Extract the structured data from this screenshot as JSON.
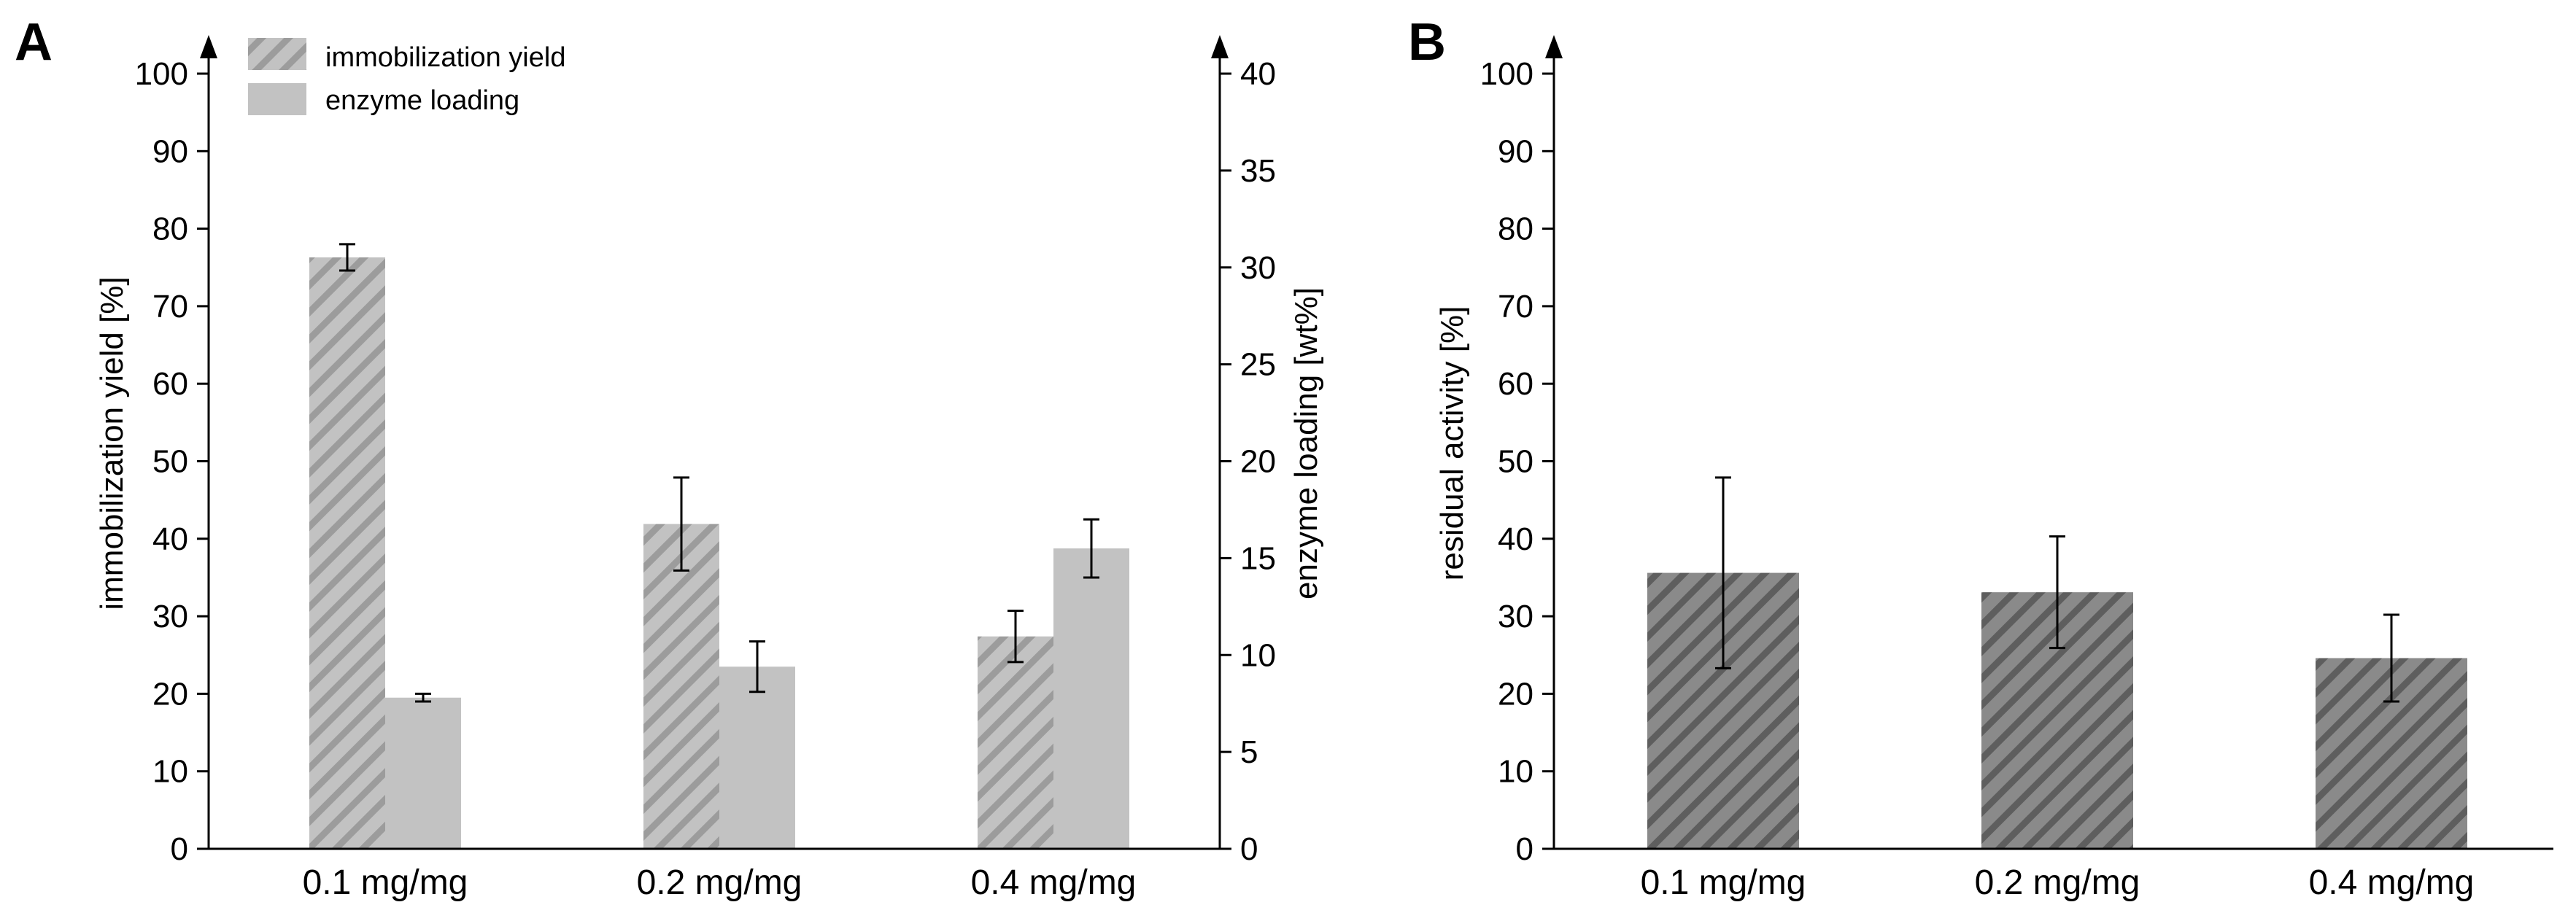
{
  "colors": {
    "hatch_light_bg": "#c2c2c2",
    "hatch_light_stripe": "#9c9c9c",
    "hatch_dark_bg": "#8a8a8a",
    "hatch_dark_stripe": "#5e5e5e",
    "solid_bar": "#c2c2c2",
    "axis": "#000000"
  },
  "chart_data": [
    {
      "panel": "A",
      "type": "bar",
      "categories": [
        "0.1 mg/mg",
        "0.2 mg/mg",
        "0.4 mg/mg"
      ],
      "ylabel": "immobilization yield [%]",
      "y2label": "enzyme loading [wt%]",
      "ylim": [
        0,
        100
      ],
      "y2lim": [
        0,
        40
      ],
      "yticks": [
        0,
        10,
        20,
        30,
        40,
        50,
        60,
        70,
        80,
        90,
        100
      ],
      "y2ticks": [
        0,
        5,
        10,
        15,
        20,
        25,
        30,
        35,
        40
      ],
      "legend_position": "top-left",
      "series": [
        {
          "name": "immobilization yield",
          "axis": "left",
          "style": "hatched-light",
          "values": [
            76.3,
            41.9,
            27.4
          ],
          "errors": [
            1.7,
            6.0,
            3.3
          ]
        },
        {
          "name": "enzyme loading",
          "axis": "right",
          "style": "solid-light",
          "values": [
            7.8,
            9.4,
            15.5
          ],
          "errors": [
            0.2,
            1.3,
            1.5
          ]
        }
      ]
    },
    {
      "panel": "B",
      "type": "bar",
      "categories": [
        "0.1 mg/mg",
        "0.2 mg/mg",
        "0.4 mg/mg"
      ],
      "ylabel": "residual activity [%]",
      "ylim": [
        0,
        100
      ],
      "yticks": [
        0,
        10,
        20,
        30,
        40,
        50,
        60,
        70,
        80,
        90,
        100
      ],
      "series": [
        {
          "name": "residual activity",
          "axis": "left",
          "style": "hatched-dark",
          "values": [
            35.6,
            33.1,
            24.6
          ],
          "errors": [
            12.3,
            7.2,
            5.6
          ]
        }
      ]
    }
  ]
}
